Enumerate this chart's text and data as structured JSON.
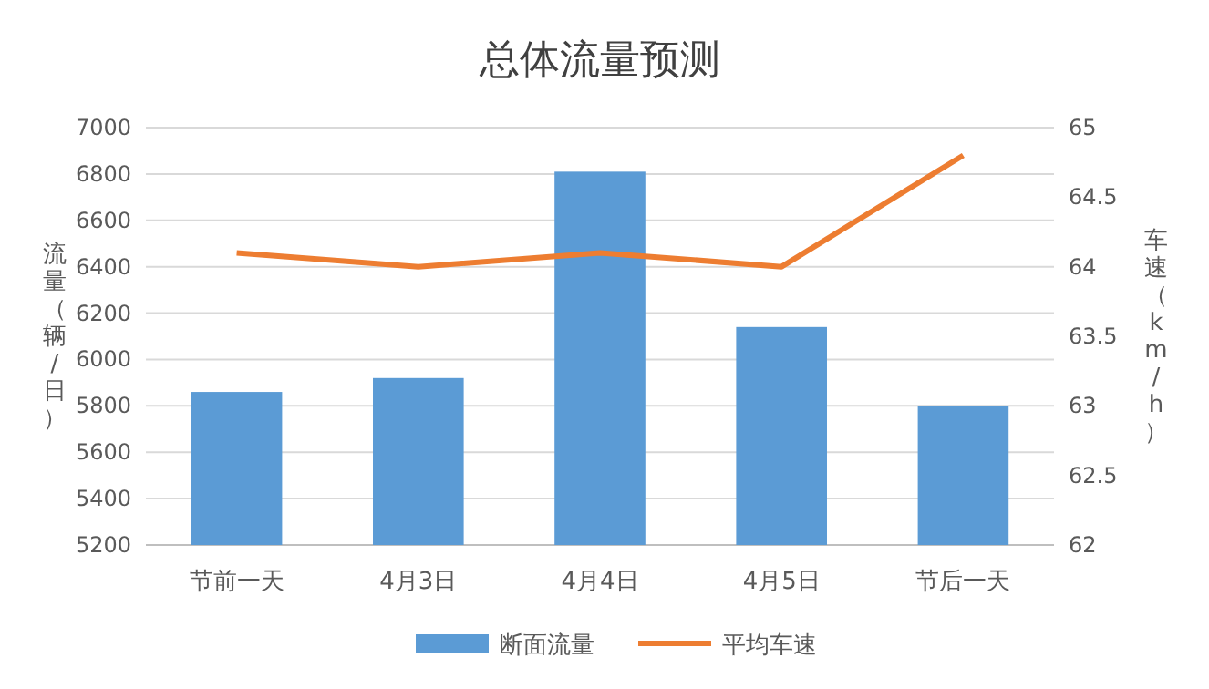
{
  "chart_data": {
    "type": "bar",
    "title": "总体流量预测",
    "ylabel": "流量（辆/日）",
    "y2label": "车速（km/h）",
    "categories": [
      "节前一天",
      "4月3日",
      "4月4日",
      "4月5日",
      "节后一天"
    ],
    "series": [
      {
        "name": "断面流量",
        "color": "#5b9bd5",
        "values": [
          5860,
          5920,
          6810,
          6140,
          5800
        ]
      },
      {
        "name": "平均车速",
        "type": "line",
        "axis": "y2",
        "color": "#ed7d31",
        "values": [
          64.1,
          64.0,
          64.1,
          64.0,
          64.8
        ]
      }
    ],
    "ylim": [
      5200,
      7000
    ],
    "yticks": [
      5200,
      5400,
      5600,
      5800,
      6000,
      6200,
      6400,
      6600,
      6800,
      7000
    ],
    "y2lim": [
      62,
      65
    ],
    "y2ticks": [
      62,
      62.5,
      63,
      63.5,
      64,
      64.5,
      65
    ],
    "grid": "y",
    "legend": "bottom",
    "marker": "none",
    "line_style": "solid"
  }
}
